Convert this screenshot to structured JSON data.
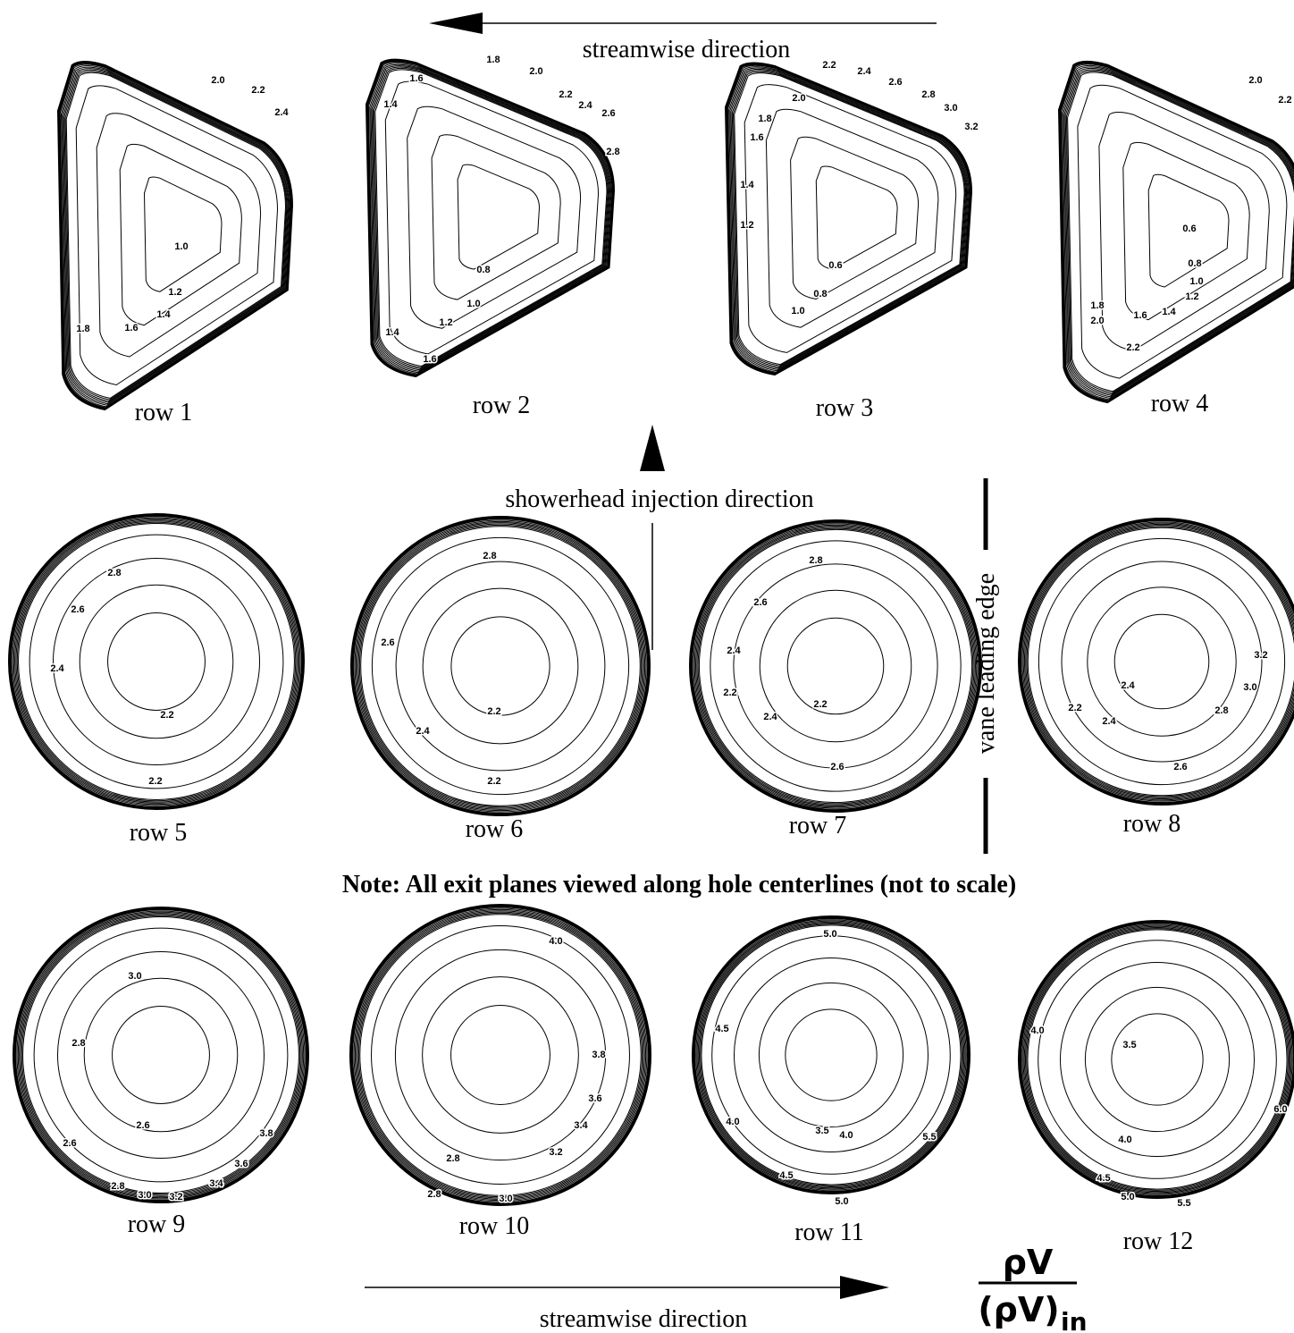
{
  "top_arrow_label": "streamwise direction",
  "injection_label": "showerhead injection direction",
  "vane_label": "vane leading edge",
  "note": "Note: All exit planes viewed along hole centerlines (not to scale)",
  "bottom_arrow_label": "streamwise direction",
  "formula": {
    "numerator": "ρV",
    "denominator": "(ρV)",
    "subscript": "in"
  },
  "panels": [
    {
      "label": "row 1",
      "contours": [
        "2.0",
        "2.2",
        "2.4",
        "1.0",
        "1.2",
        "1.4",
        "1.6",
        "1.8"
      ]
    },
    {
      "label": "row 2",
      "contours": [
        "1.8",
        "1.6",
        "2.0",
        "2.2",
        "2.4",
        "2.6",
        "2.8",
        "1.4",
        "0.8",
        "1.0",
        "1.2",
        "1.4",
        "1.6"
      ]
    },
    {
      "label": "row 3",
      "contours": [
        "2.2",
        "2.4",
        "2.6",
        "2.8",
        "3.0",
        "3.2",
        "2.0",
        "1.8",
        "1.6",
        "1.4",
        "1.2",
        "0.6",
        "0.8",
        "1.0"
      ]
    },
    {
      "label": "row 4",
      "contours": [
        "2.0",
        "2.2",
        "0.6",
        "0.8",
        "1.0",
        "1.2",
        "1.4",
        "1.6",
        "1.8",
        "2.0",
        "2.2"
      ]
    },
    {
      "label": "row 5",
      "contours": [
        "2.8",
        "2.6",
        "2.4",
        "2.2",
        "2.2"
      ]
    },
    {
      "label": "row 6",
      "contours": [
        "2.8",
        "2.6",
        "2.4",
        "2.2",
        "2.2"
      ]
    },
    {
      "label": "row 7",
      "contours": [
        "2.8",
        "2.6",
        "2.4",
        "2.2",
        "2.2",
        "2.4",
        "2.6"
      ]
    },
    {
      "label": "row 8",
      "contours": [
        "3.2",
        "3.0",
        "2.8",
        "2.4",
        "2.2",
        "2.4",
        "2.6"
      ]
    },
    {
      "label": "row 9",
      "contours": [
        "3.0",
        "2.8",
        "2.6",
        "2.6",
        "3.8",
        "3.6",
        "3.4",
        "2.8",
        "3.0",
        "3.2"
      ]
    },
    {
      "label": "row 10",
      "contours": [
        "4.0",
        "3.8",
        "3.6",
        "3.4",
        "2.8",
        "3.2",
        "2.8",
        "3.0"
      ]
    },
    {
      "label": "row 11",
      "contours": [
        "5.0",
        "4.5",
        "4.0",
        "3.5",
        "4.0",
        "5.5",
        "4.5",
        "5.0"
      ]
    },
    {
      "label": "row 12",
      "contours": [
        "4.0",
        "3.5",
        "6.0",
        "4.0",
        "4.5",
        "5.0",
        "5.5"
      ]
    }
  ]
}
